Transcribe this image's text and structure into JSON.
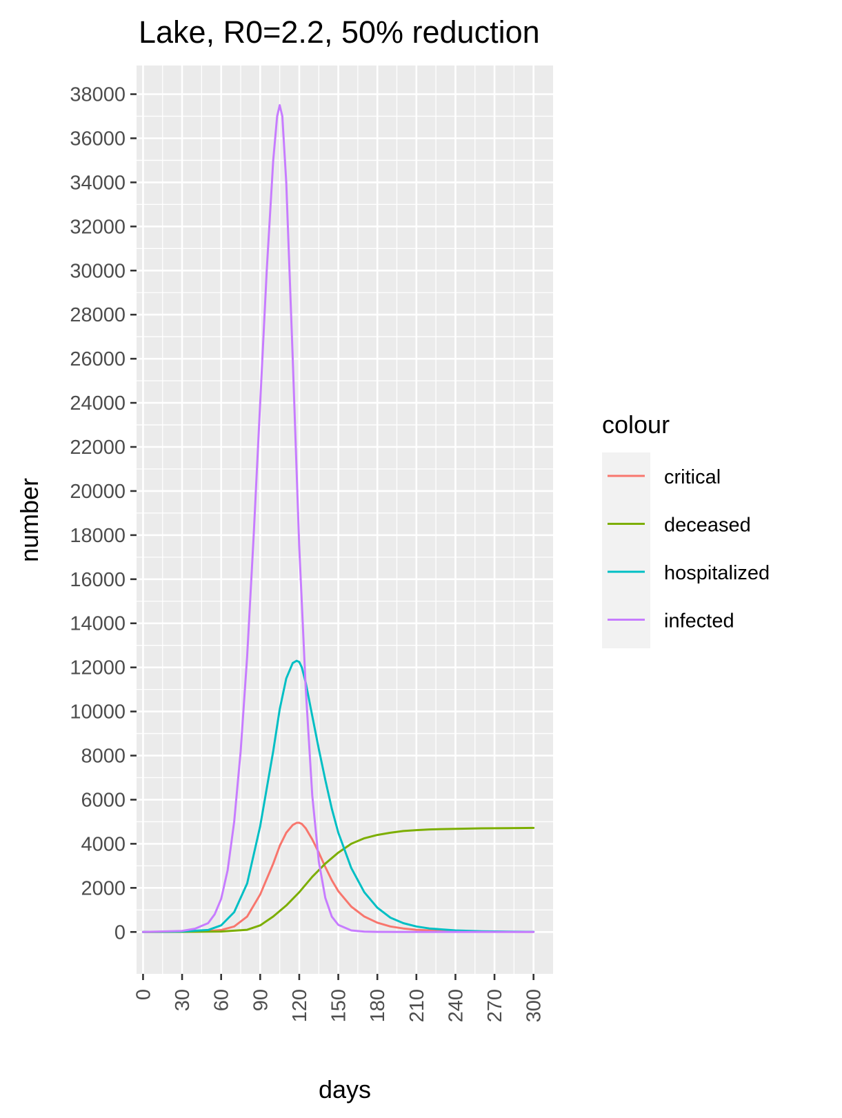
{
  "chart_data": {
    "type": "line",
    "title": "Lake, R0=2.2, 50% reduction",
    "xlabel": "days",
    "ylabel": "number",
    "xlim": [
      -5,
      315
    ],
    "ylim": [
      -1900,
      39300
    ],
    "x_ticks": [
      0,
      30,
      60,
      90,
      120,
      150,
      180,
      210,
      240,
      270,
      300
    ],
    "x_tick_labels": [
      "0",
      "30",
      "60",
      "90",
      "120",
      "150",
      "180",
      "210",
      "240",
      "270",
      "300"
    ],
    "y_ticks": [
      0,
      2000,
      4000,
      6000,
      8000,
      10000,
      12000,
      14000,
      16000,
      18000,
      20000,
      22000,
      24000,
      26000,
      28000,
      30000,
      32000,
      34000,
      36000,
      38000
    ],
    "y_tick_labels": [
      "0",
      "2000",
      "4000",
      "6000",
      "8000",
      "10000",
      "12000",
      "14000",
      "16000",
      "18000",
      "20000",
      "22000",
      "24000",
      "26000",
      "28000",
      "30000",
      "32000",
      "34000",
      "36000",
      "38000"
    ],
    "grid": true,
    "legend_title": "colour",
    "legend_position": "right",
    "background": "#ebebeb",
    "grid_color": "#ffffff",
    "series": [
      {
        "name": "critical",
        "color": "#f8766d",
        "x": [
          0,
          30,
          50,
          60,
          70,
          80,
          90,
          100,
          105,
          110,
          115,
          118,
          120,
          122,
          125,
          130,
          135,
          140,
          145,
          150,
          160,
          170,
          180,
          190,
          200,
          210,
          220,
          240,
          260,
          280,
          300
        ],
        "y": [
          0,
          10,
          40,
          90,
          250,
          700,
          1700,
          3100,
          3900,
          4500,
          4850,
          4950,
          4950,
          4900,
          4700,
          4200,
          3600,
          2950,
          2350,
          1850,
          1150,
          700,
          420,
          250,
          160,
          100,
          70,
          30,
          15,
          8,
          5
        ]
      },
      {
        "name": "deceased",
        "color": "#7cae00",
        "x": [
          0,
          30,
          60,
          80,
          90,
          100,
          110,
          120,
          130,
          140,
          150,
          160,
          170,
          180,
          190,
          200,
          210,
          220,
          240,
          260,
          280,
          300
        ],
        "y": [
          0,
          5,
          20,
          100,
          300,
          700,
          1200,
          1800,
          2500,
          3100,
          3600,
          4000,
          4250,
          4400,
          4500,
          4580,
          4620,
          4650,
          4680,
          4700,
          4710,
          4720
        ]
      },
      {
        "name": "hospitalized",
        "color": "#00bfc4",
        "x": [
          0,
          30,
          50,
          60,
          70,
          80,
          90,
          100,
          105,
          110,
          115,
          118,
          120,
          122,
          125,
          130,
          135,
          140,
          145,
          150,
          160,
          170,
          180,
          190,
          200,
          210,
          220,
          240,
          260,
          280,
          300
        ],
        "y": [
          0,
          20,
          90,
          300,
          900,
          2200,
          4800,
          8200,
          10100,
          11500,
          12200,
          12300,
          12250,
          12000,
          11300,
          9800,
          8300,
          6900,
          5600,
          4500,
          2900,
          1800,
          1100,
          650,
          400,
          250,
          160,
          70,
          30,
          15,
          8
        ]
      },
      {
        "name": "infected",
        "color": "#c77cff",
        "x": [
          0,
          30,
          40,
          50,
          55,
          60,
          65,
          70,
          75,
          80,
          85,
          90,
          95,
          100,
          103,
          105,
          107,
          110,
          115,
          120,
          125,
          130,
          135,
          140,
          145,
          150,
          160,
          170,
          180,
          200,
          220,
          250,
          300
        ],
        "y": [
          0,
          50,
          150,
          400,
          800,
          1500,
          2800,
          5000,
          8200,
          12500,
          18000,
          24000,
          30000,
          35000,
          37000,
          37500,
          37000,
          34000,
          26000,
          17500,
          11000,
          6200,
          3200,
          1550,
          700,
          320,
          70,
          15,
          5,
          0,
          0,
          0,
          0
        ]
      }
    ]
  }
}
